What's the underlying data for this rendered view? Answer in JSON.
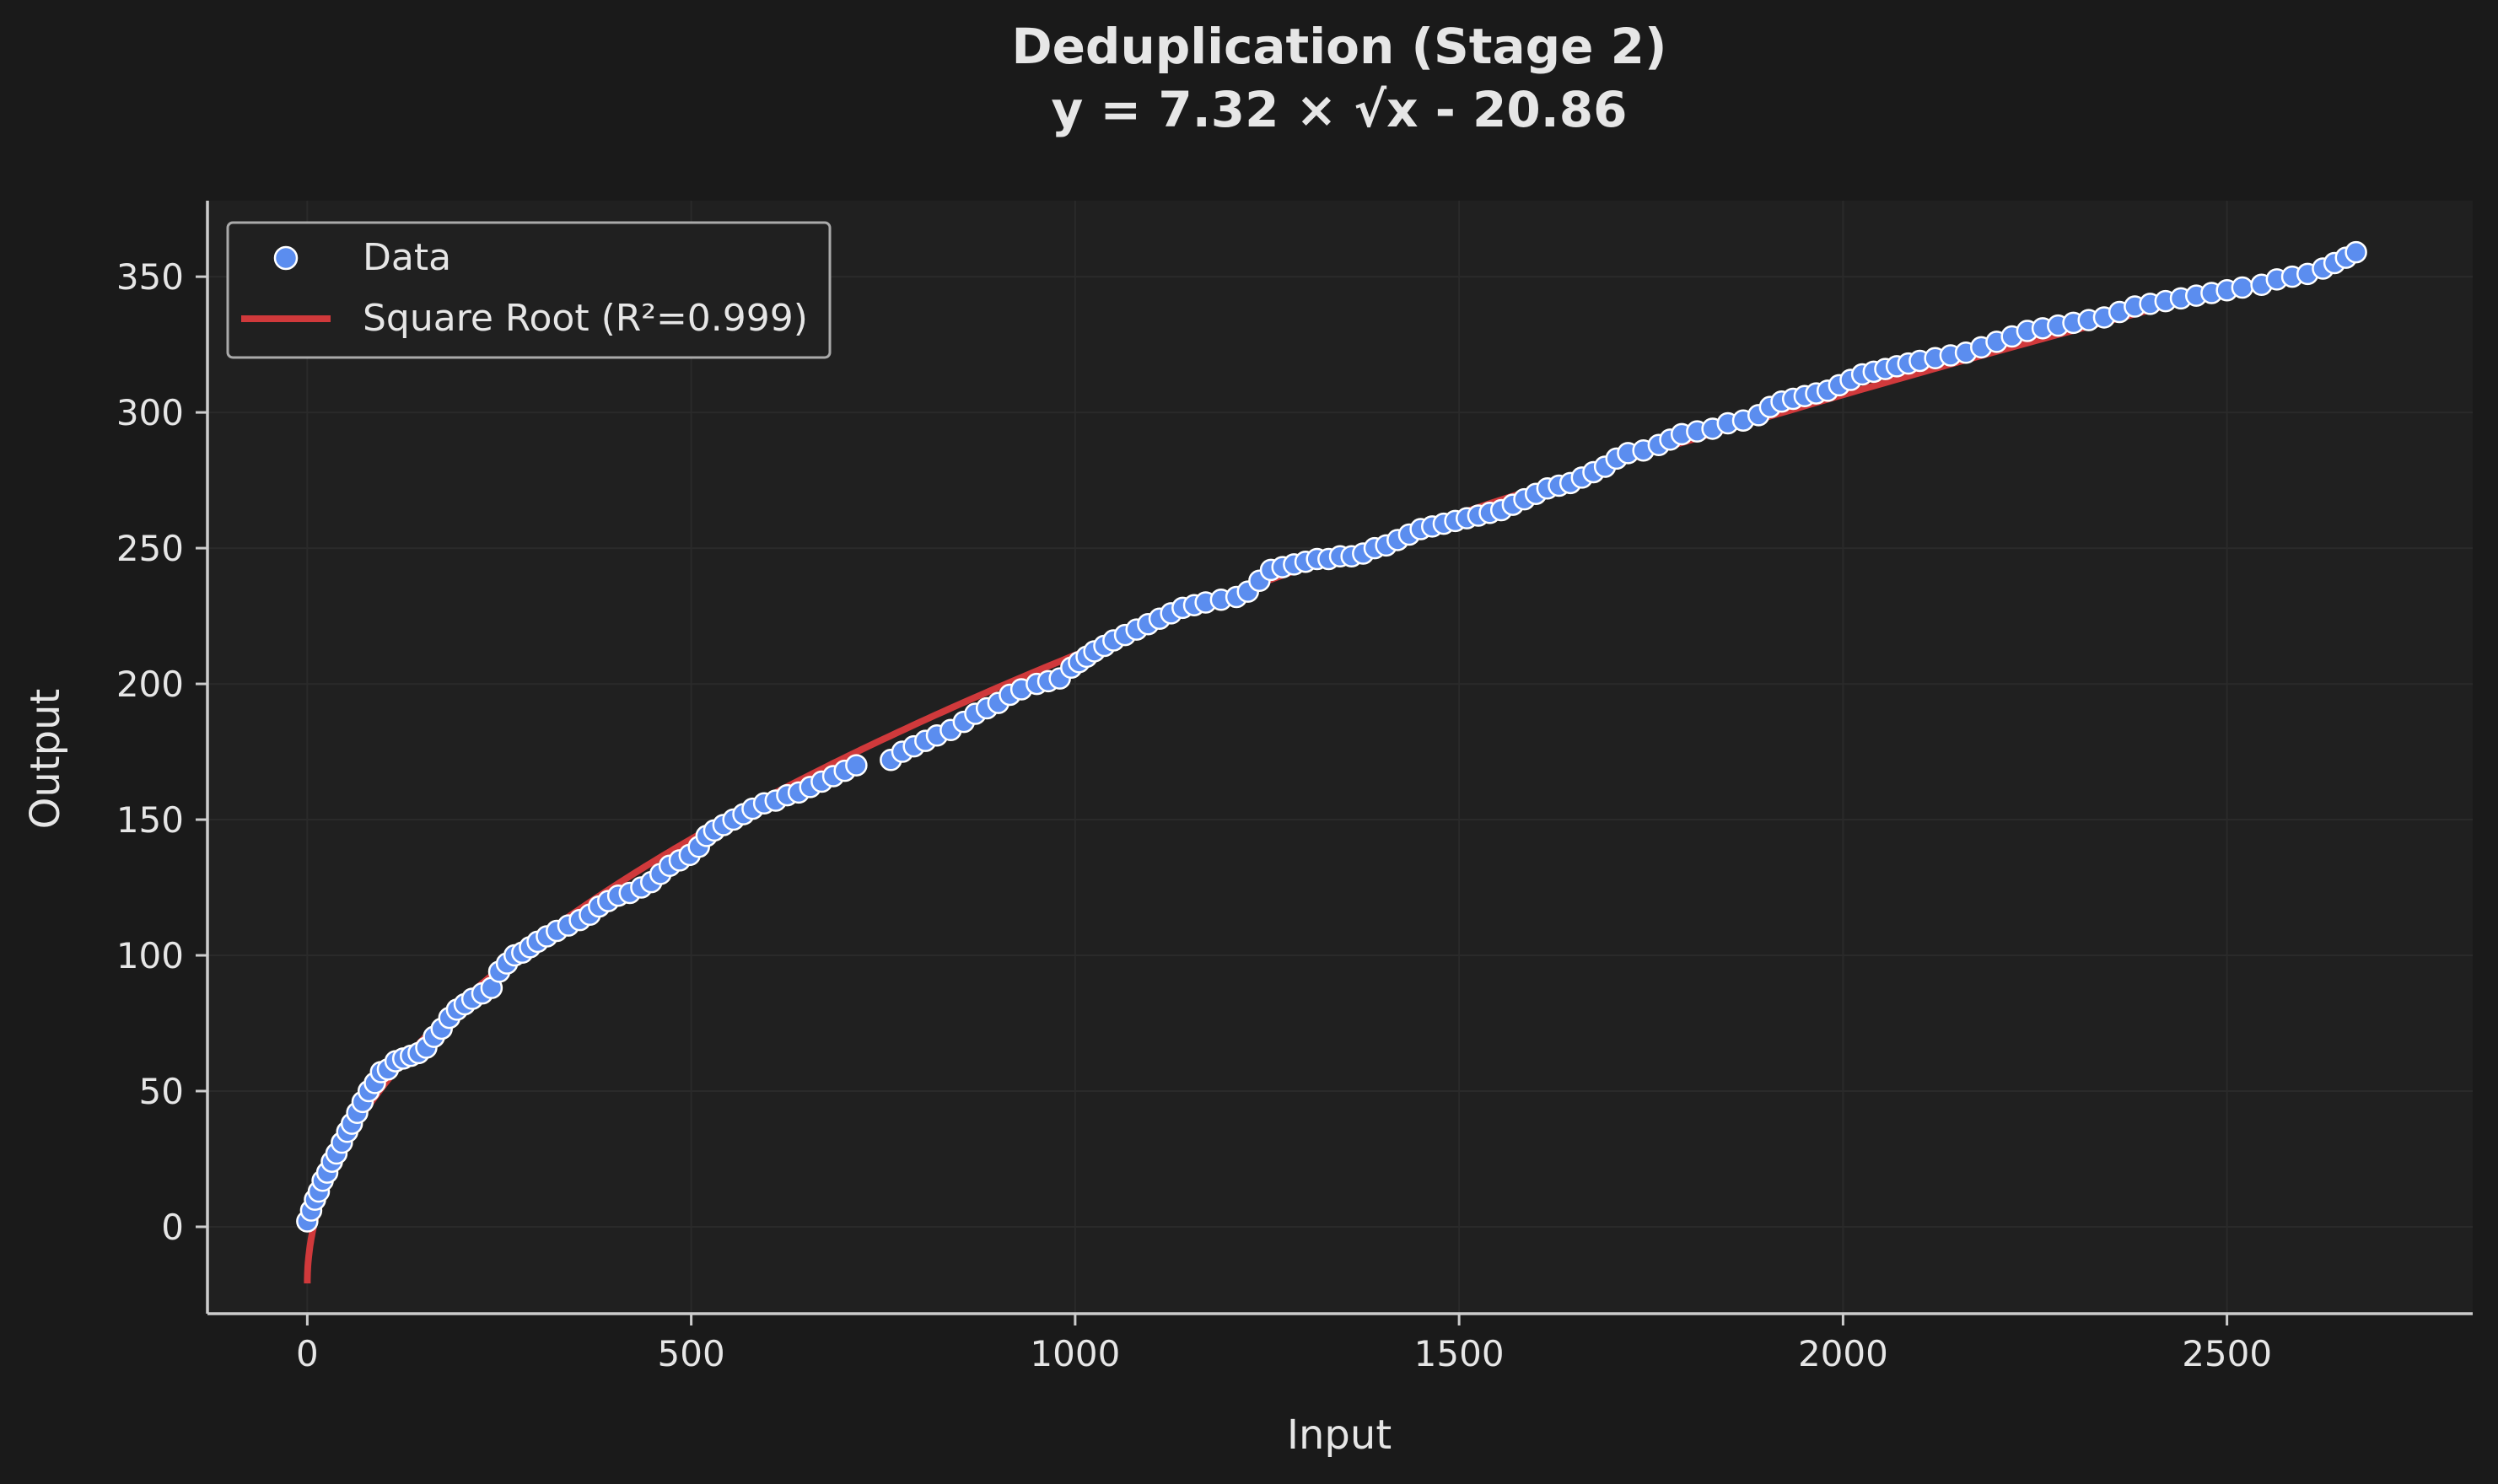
{
  "chart_data": {
    "type": "scatter",
    "title": "Deduplication (Stage 2)",
    "subtitle": "y = 7.32 × √x - 20.86",
    "xlabel": "Input",
    "ylabel": "Output",
    "xlim": [
      -130,
      2820
    ],
    "ylim": [
      -32,
      378
    ],
    "xticks": [
      0,
      500,
      1000,
      1500,
      2000,
      2500
    ],
    "yticks": [
      0,
      50,
      100,
      150,
      200,
      250,
      300,
      350
    ],
    "grid": true,
    "legend_position": "top-left",
    "legend": [
      {
        "label": "Data",
        "kind": "marker"
      },
      {
        "label": "Square Root (R²=0.999)",
        "kind": "line"
      }
    ],
    "fit": {
      "a": 7.32,
      "b": -20.86,
      "x_from": 0,
      "x_to": 2670
    },
    "colors": {
      "background": "#1a1a1a",
      "plot_background": "#202020",
      "text": "#e6e6e6",
      "marker_fill": "#5b8def",
      "marker_edge": "#ffffff",
      "fit_line": "#d0393b",
      "grid": "#2a2a2a",
      "axis": "#cccccc"
    },
    "series": [
      {
        "name": "Data",
        "points": [
          [
            0,
            2
          ],
          [
            5,
            6
          ],
          [
            10,
            10
          ],
          [
            15,
            13
          ],
          [
            20,
            17
          ],
          [
            26,
            20
          ],
          [
            32,
            24
          ],
          [
            38,
            27
          ],
          [
            45,
            31
          ],
          [
            52,
            35
          ],
          [
            58,
            38
          ],
          [
            65,
            42
          ],
          [
            72,
            46
          ],
          [
            80,
            50
          ],
          [
            88,
            53
          ],
          [
            96,
            57
          ],
          [
            105,
            58
          ],
          [
            115,
            61
          ],
          [
            125,
            62
          ],
          [
            135,
            63
          ],
          [
            145,
            64
          ],
          [
            155,
            66
          ],
          [
            165,
            70
          ],
          [
            175,
            73
          ],
          [
            185,
            77
          ],
          [
            195,
            80
          ],
          [
            205,
            82
          ],
          [
            215,
            84
          ],
          [
            228,
            86
          ],
          [
            240,
            88
          ],
          [
            250,
            94
          ],
          [
            260,
            97
          ],
          [
            270,
            100
          ],
          [
            280,
            101
          ],
          [
            290,
            103
          ],
          [
            300,
            105
          ],
          [
            312,
            107
          ],
          [
            325,
            109
          ],
          [
            340,
            111
          ],
          [
            355,
            113
          ],
          [
            368,
            115
          ],
          [
            380,
            118
          ],
          [
            392,
            120
          ],
          [
            405,
            122
          ],
          [
            420,
            123
          ],
          [
            435,
            125
          ],
          [
            448,
            127
          ],
          [
            460,
            130
          ],
          [
            472,
            133
          ],
          [
            485,
            135
          ],
          [
            498,
            137
          ],
          [
            510,
            140
          ],
          [
            520,
            144
          ],
          [
            530,
            146
          ],
          [
            542,
            148
          ],
          [
            555,
            150
          ],
          [
            568,
            152
          ],
          [
            580,
            154
          ],
          [
            595,
            156
          ],
          [
            610,
            157
          ],
          [
            625,
            159
          ],
          [
            640,
            160
          ],
          [
            655,
            162
          ],
          [
            670,
            164
          ],
          [
            685,
            166
          ],
          [
            700,
            168
          ],
          [
            715,
            170
          ],
          [
            760,
            172
          ],
          [
            775,
            175
          ],
          [
            790,
            177
          ],
          [
            805,
            179
          ],
          [
            820,
            181
          ],
          [
            838,
            183
          ],
          [
            855,
            186
          ],
          [
            870,
            189
          ],
          [
            885,
            191
          ],
          [
            900,
            193
          ],
          [
            915,
            196
          ],
          [
            930,
            198
          ],
          [
            950,
            200
          ],
          [
            965,
            201
          ],
          [
            980,
            202
          ],
          [
            995,
            206
          ],
          [
            1005,
            208
          ],
          [
            1015,
            210
          ],
          [
            1025,
            212
          ],
          [
            1038,
            214
          ],
          [
            1050,
            216
          ],
          [
            1065,
            218
          ],
          [
            1080,
            220
          ],
          [
            1095,
            222
          ],
          [
            1110,
            224
          ],
          [
            1125,
            226
          ],
          [
            1140,
            228
          ],
          [
            1155,
            229
          ],
          [
            1170,
            230
          ],
          [
            1190,
            231
          ],
          [
            1210,
            232
          ],
          [
            1225,
            234
          ],
          [
            1240,
            238
          ],
          [
            1255,
            242
          ],
          [
            1270,
            243
          ],
          [
            1285,
            244
          ],
          [
            1300,
            245
          ],
          [
            1315,
            246
          ],
          [
            1330,
            246
          ],
          [
            1345,
            247
          ],
          [
            1360,
            247
          ],
          [
            1375,
            248
          ],
          [
            1390,
            250
          ],
          [
            1405,
            251
          ],
          [
            1420,
            253
          ],
          [
            1435,
            255
          ],
          [
            1450,
            257
          ],
          [
            1465,
            258
          ],
          [
            1480,
            259
          ],
          [
            1495,
            260
          ],
          [
            1510,
            261
          ],
          [
            1525,
            262
          ],
          [
            1540,
            263
          ],
          [
            1555,
            264
          ],
          [
            1570,
            266
          ],
          [
            1585,
            268
          ],
          [
            1600,
            270
          ],
          [
            1615,
            272
          ],
          [
            1630,
            273
          ],
          [
            1645,
            274
          ],
          [
            1660,
            276
          ],
          [
            1675,
            278
          ],
          [
            1690,
            280
          ],
          [
            1705,
            283
          ],
          [
            1720,
            285
          ],
          [
            1740,
            286
          ],
          [
            1760,
            288
          ],
          [
            1775,
            290
          ],
          [
            1790,
            292
          ],
          [
            1810,
            293
          ],
          [
            1830,
            294
          ],
          [
            1850,
            296
          ],
          [
            1870,
            297
          ],
          [
            1890,
            299
          ],
          [
            1905,
            302
          ],
          [
            1920,
            304
          ],
          [
            1935,
            305
          ],
          [
            1950,
            306
          ],
          [
            1965,
            307
          ],
          [
            1980,
            308
          ],
          [
            1995,
            310
          ],
          [
            2010,
            312
          ],
          [
            2025,
            314
          ],
          [
            2040,
            315
          ],
          [
            2055,
            316
          ],
          [
            2070,
            317
          ],
          [
            2085,
            318
          ],
          [
            2100,
            319
          ],
          [
            2120,
            320
          ],
          [
            2140,
            321
          ],
          [
            2160,
            322
          ],
          [
            2180,
            324
          ],
          [
            2200,
            326
          ],
          [
            2220,
            328
          ],
          [
            2240,
            330
          ],
          [
            2260,
            331
          ],
          [
            2280,
            332
          ],
          [
            2300,
            333
          ],
          [
            2320,
            334
          ],
          [
            2340,
            335
          ],
          [
            2360,
            337
          ],
          [
            2380,
            339
          ],
          [
            2400,
            340
          ],
          [
            2420,
            341
          ],
          [
            2440,
            342
          ],
          [
            2460,
            343
          ],
          [
            2480,
            344
          ],
          [
            2500,
            345
          ],
          [
            2520,
            346
          ],
          [
            2545,
            347
          ],
          [
            2565,
            349
          ],
          [
            2585,
            350
          ],
          [
            2605,
            351
          ],
          [
            2625,
            353
          ],
          [
            2640,
            355
          ],
          [
            2655,
            357
          ],
          [
            2668,
            359
          ]
        ]
      }
    ]
  }
}
